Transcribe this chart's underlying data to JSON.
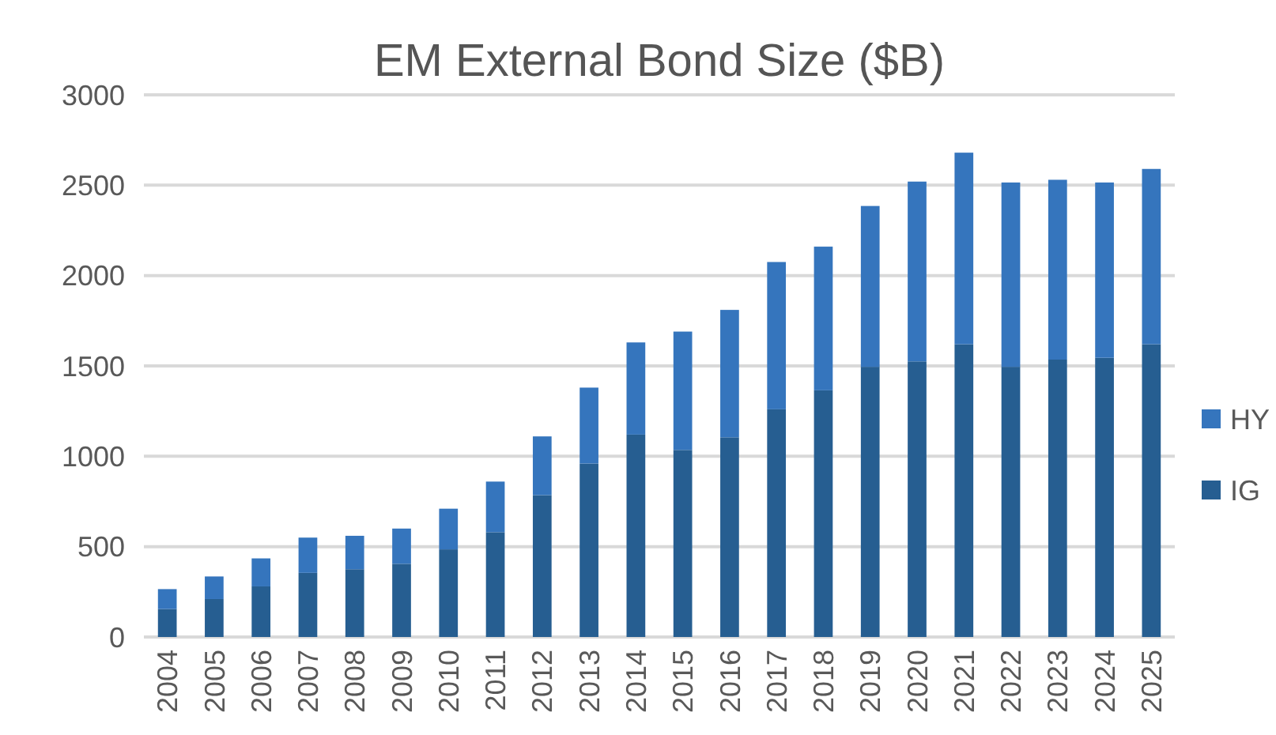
{
  "chart_data": {
    "type": "bar",
    "title": "EM External Bond Size ($B)",
    "stacked": true,
    "categories": [
      "2004",
      "2005",
      "2006",
      "2007",
      "2008",
      "2009",
      "2010",
      "2011",
      "2012",
      "2013",
      "2014",
      "2015",
      "2016",
      "2017",
      "2018",
      "2019",
      "2020",
      "2021",
      "2022",
      "2023",
      "2024",
      "2025"
    ],
    "series": [
      {
        "name": "IG",
        "color": "#265e91",
        "values": [
          155,
          210,
          280,
          355,
          375,
          405,
          485,
          580,
          785,
          960,
          1120,
          1035,
          1105,
          1260,
          1365,
          1495,
          1525,
          1620,
          1495,
          1535,
          1545,
          1620
        ]
      },
      {
        "name": "HY",
        "color": "#3575bd",
        "values": [
          110,
          125,
          155,
          195,
          185,
          195,
          225,
          280,
          325,
          420,
          510,
          655,
          705,
          815,
          795,
          890,
          995,
          1060,
          1020,
          995,
          970,
          970
        ]
      }
    ],
    "ylim": [
      0,
      3000
    ],
    "yticks": [
      0,
      500,
      1000,
      1500,
      2000,
      2500,
      3000
    ],
    "grid": "y",
    "legend": "right"
  }
}
